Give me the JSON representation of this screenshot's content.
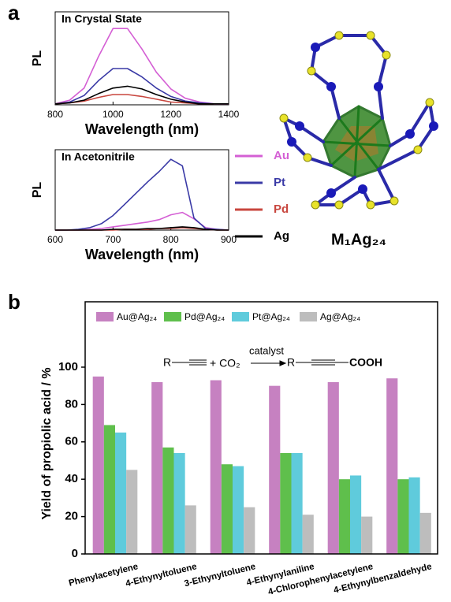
{
  "panel_labels": [
    "a",
    "b"
  ],
  "structure_label": "M₁Ag₂₄",
  "chart_data": [
    {
      "type": "line",
      "title": "In Crystal State",
      "y_label": "PL",
      "x_label": "Wavelength (nm)",
      "x": [
        800,
        850,
        900,
        950,
        1000,
        1050,
        1100,
        1150,
        1200,
        1250,
        1300,
        1350,
        1400
      ],
      "xlim": [
        800,
        1400
      ],
      "xticks": [
        800,
        1000,
        1200,
        1400
      ],
      "ylim": [
        0,
        1
      ],
      "legend": true,
      "series": [
        {
          "name": "Au",
          "color": "#d45fd4",
          "values": [
            0.01,
            0.05,
            0.18,
            0.52,
            0.82,
            0.82,
            0.6,
            0.35,
            0.17,
            0.07,
            0.03,
            0.01,
            0.01
          ]
        },
        {
          "name": "Pt",
          "color": "#3a3aa6",
          "values": [
            0.01,
            0.03,
            0.1,
            0.26,
            0.39,
            0.39,
            0.3,
            0.18,
            0.09,
            0.04,
            0.02,
            0.01,
            0.01
          ]
        },
        {
          "name": "Pd",
          "color": "#c8463e",
          "values": [
            0.01,
            0.02,
            0.04,
            0.08,
            0.11,
            0.11,
            0.09,
            0.06,
            0.03,
            0.02,
            0.01,
            0.01,
            0.01
          ]
        },
        {
          "name": "Ag",
          "color": "#000000",
          "values": [
            0.01,
            0.02,
            0.05,
            0.12,
            0.18,
            0.2,
            0.17,
            0.11,
            0.06,
            0.03,
            0.01,
            0.01,
            0.01
          ]
        }
      ]
    },
    {
      "type": "line",
      "title": "In Acetonitrile",
      "y_label": "PL",
      "x_label": "Wavelength (nm)",
      "x": [
        600,
        620,
        640,
        660,
        680,
        700,
        720,
        740,
        760,
        780,
        800,
        820,
        840,
        860,
        880,
        900
      ],
      "xlim": [
        600,
        900
      ],
      "xticks": [
        600,
        700,
        800,
        900
      ],
      "ylim": [
        0,
        1
      ],
      "series": [
        {
          "color": "#d45fd4",
          "values": [
            0,
            0,
            0,
            0.01,
            0.02,
            0.04,
            0.06,
            0.08,
            0.1,
            0.13,
            0.19,
            0.22,
            0.14,
            0.03,
            0.01,
            0
          ]
        },
        {
          "color": "#3a3aa6",
          "values": [
            0,
            0,
            0.01,
            0.03,
            0.08,
            0.18,
            0.32,
            0.46,
            0.6,
            0.73,
            0.88,
            0.8,
            0.15,
            0.02,
            0.01,
            0
          ]
        },
        {
          "color": "#c8463e",
          "values": [
            0,
            0,
            0,
            0,
            0,
            0,
            0.01,
            0.01,
            0.01,
            0.02,
            0.02,
            0.03,
            0.02,
            0.01,
            0,
            0
          ]
        },
        {
          "color": "#000000",
          "values": [
            0,
            0,
            0,
            0,
            0,
            0.01,
            0.01,
            0.01,
            0.02,
            0.02,
            0.03,
            0.04,
            0.03,
            0.01,
            0,
            0
          ]
        }
      ]
    },
    {
      "type": "bar",
      "y_label": "Yield of propiolic acid / %",
      "categories": [
        "Phenylacetylene",
        "4-Ethynyltoluene",
        "3-Ethynyltoluene",
        "4-Ethynylaniline",
        "4-Chlorophenylacetylene",
        "4-Ethynylbenzaldehyde"
      ],
      "ylim": [
        0,
        135
      ],
      "yticks": [
        0,
        20,
        40,
        60,
        80,
        100
      ],
      "scheme": {
        "reactant": "R",
        "plus_co2": "+ CO₂",
        "catalyst": "catalyst",
        "product_r": "R",
        "product_group": "COOH"
      },
      "series": [
        {
          "name": "Au@Ag₂₄",
          "color": "#c681c1",
          "values": [
            95,
            92,
            93,
            90,
            92,
            94
          ]
        },
        {
          "name": "Pd@Ag₂₄",
          "color": "#5fbf4c",
          "values": [
            69,
            57,
            48,
            54,
            40,
            40
          ]
        },
        {
          "name": "Pt@Ag₂₄",
          "color": "#5fcbdc",
          "values": [
            65,
            54,
            47,
            54,
            42,
            41
          ]
        },
        {
          "name": "Ag@Ag₂₄",
          "color": "#bdbdbd",
          "values": [
            45,
            26,
            25,
            21,
            20,
            22
          ]
        }
      ]
    }
  ]
}
